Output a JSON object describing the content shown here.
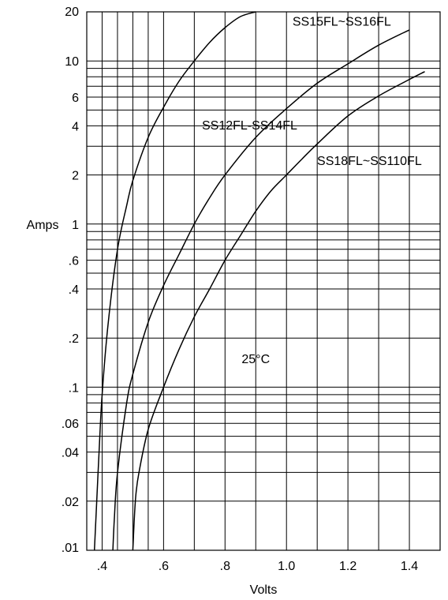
{
  "chart_data": {
    "type": "line",
    "title": "",
    "xlabel": "Volts",
    "ylabel": "Amps",
    "x_scale": "linear",
    "y_scale": "log",
    "xlim": [
      0.35,
      1.5
    ],
    "ylim": [
      0.01,
      20
    ],
    "x_ticks": [
      {
        "value": 0.4,
        "label": ".4"
      },
      {
        "value": 0.6,
        "label": ".6"
      },
      {
        "value": 0.8,
        "label": ".8"
      },
      {
        "value": 1.0,
        "label": "1.0"
      },
      {
        "value": 1.2,
        "label": "1.2"
      },
      {
        "value": 1.4,
        "label": "1.4"
      }
    ],
    "x_grid": [
      0.35,
      0.4,
      0.45,
      0.5,
      0.55,
      0.6,
      0.7,
      0.8,
      0.9,
      1.0,
      1.1,
      1.2,
      1.3,
      1.4,
      1.5
    ],
    "y_ticks": [
      {
        "value": 0.01,
        "label": ".01"
      },
      {
        "value": 0.02,
        "label": ".02"
      },
      {
        "value": 0.04,
        "label": ".04"
      },
      {
        "value": 0.06,
        "label": ".06"
      },
      {
        "value": 0.1,
        "label": ".1"
      },
      {
        "value": 0.2,
        "label": ".2"
      },
      {
        "value": 0.4,
        "label": ".4"
      },
      {
        "value": 0.6,
        "label": ".6"
      },
      {
        "value": 1,
        "label": "1"
      },
      {
        "value": 2,
        "label": "2"
      },
      {
        "value": 4,
        "label": "4"
      },
      {
        "value": 6,
        "label": "6"
      },
      {
        "value": 10,
        "label": "10"
      },
      {
        "value": 20,
        "label": "20"
      }
    ],
    "y_grid": [
      0.01,
      0.02,
      0.03,
      0.04,
      0.05,
      0.06,
      0.07,
      0.08,
      0.09,
      0.1,
      0.2,
      0.3,
      0.4,
      0.5,
      0.6,
      0.7,
      0.8,
      0.9,
      1,
      2,
      3,
      4,
      5,
      6,
      7,
      8,
      9,
      10,
      20
    ],
    "grid": true,
    "annotations": [
      {
        "text": "25°C",
        "x": 0.9,
        "y": 0.14
      }
    ],
    "series": [
      {
        "name": "SS12FL-SS14FL",
        "label_position": {
          "x": 0.88,
          "y": 3.8
        },
        "x": [
          0.375,
          0.38,
          0.39,
          0.4,
          0.42,
          0.45,
          0.48,
          0.5,
          0.55,
          0.6,
          0.65,
          0.7,
          0.75,
          0.8,
          0.85,
          0.9
        ],
        "y": [
          0.01,
          0.016,
          0.04,
          0.09,
          0.25,
          0.7,
          1.3,
          1.85,
          3.4,
          5.2,
          7.5,
          10,
          13,
          16,
          18.7,
          20
        ]
      },
      {
        "name": "SS15FL~SS16FL",
        "label_position": {
          "x": 1.18,
          "y": 16.5
        },
        "x": [
          0.435,
          0.44,
          0.45,
          0.48,
          0.5,
          0.55,
          0.6,
          0.65,
          0.7,
          0.75,
          0.8,
          0.9,
          1.0,
          1.1,
          1.2,
          1.3,
          1.4
        ],
        "y": [
          0.01,
          0.016,
          0.03,
          0.08,
          0.12,
          0.25,
          0.42,
          0.65,
          1.0,
          1.45,
          2.0,
          3.4,
          5.1,
          7.3,
          9.6,
          12.5,
          15.5
        ]
      },
      {
        "name": "SS18FL~SS110FL",
        "label_position": {
          "x": 1.27,
          "y": 2.3
        },
        "x": [
          0.5,
          0.505,
          0.51,
          0.52,
          0.55,
          0.6,
          0.65,
          0.7,
          0.75,
          0.8,
          0.85,
          0.9,
          0.95,
          1.0,
          1.05,
          1.1,
          1.2,
          1.3,
          1.4,
          1.45
        ],
        "y": [
          0.01,
          0.016,
          0.022,
          0.03,
          0.055,
          0.1,
          0.17,
          0.27,
          0.4,
          0.6,
          0.85,
          1.2,
          1.6,
          2.0,
          2.5,
          3.1,
          4.6,
          6.1,
          7.7,
          8.6
        ]
      }
    ]
  }
}
